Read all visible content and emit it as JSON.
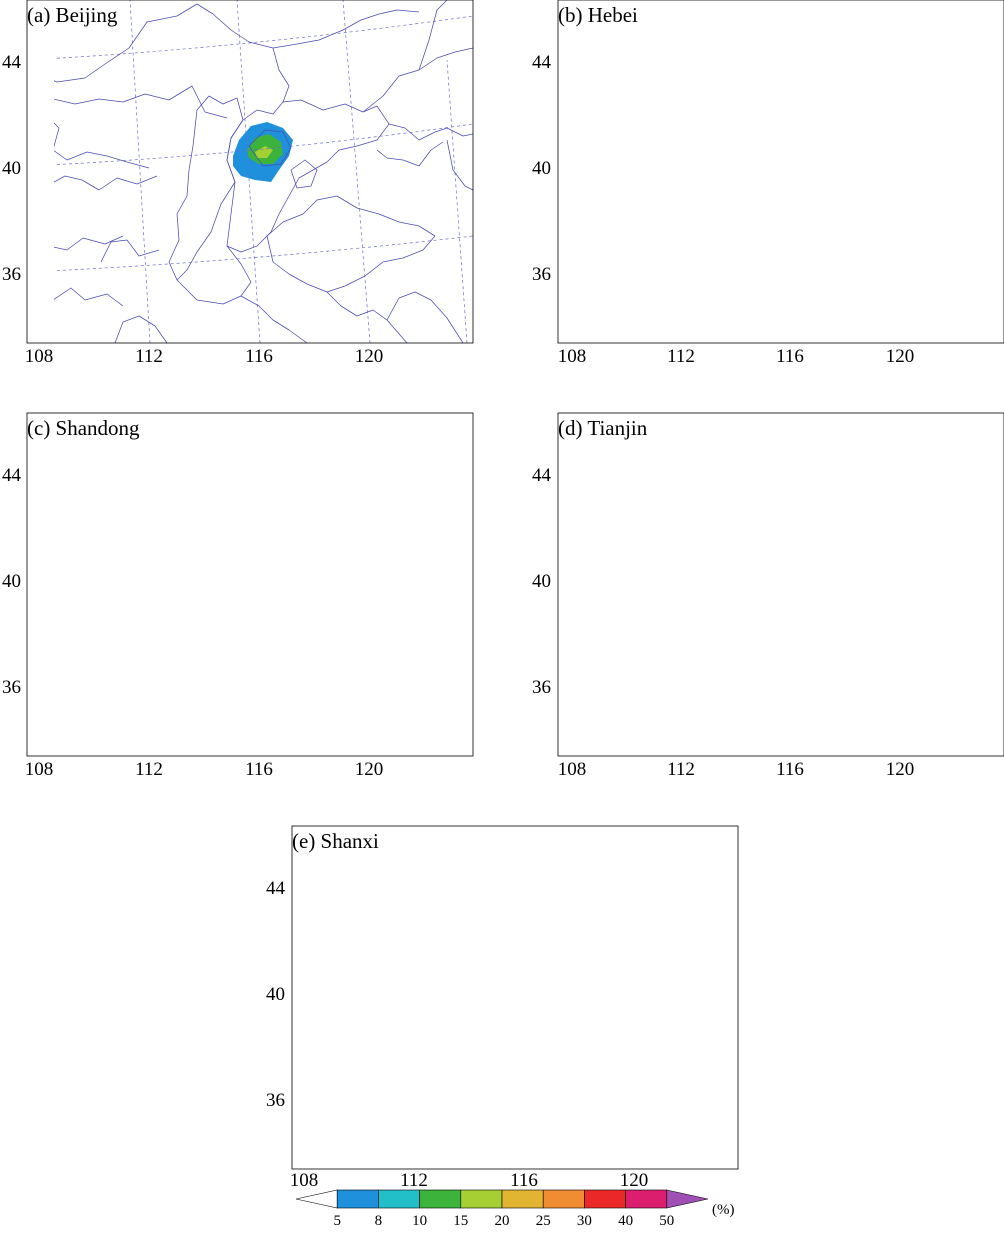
{
  "figure": {
    "panels": [
      {
        "id": "a",
        "title": "(a) Beijing"
      },
      {
        "id": "b",
        "title": "(b) Hebei"
      },
      {
        "id": "c",
        "title": "(c) Shandong"
      },
      {
        "id": "d",
        "title": "(d) Tianjin"
      },
      {
        "id": "e",
        "title": "(e) Shanxi"
      }
    ],
    "x_ticks": [
      "108",
      "112",
      "116",
      "120"
    ],
    "y_ticks": [
      "44",
      "40",
      "36"
    ],
    "legend": {
      "unit": "(%)",
      "labels": [
        "5",
        "8",
        "10",
        "15",
        "20",
        "25",
        "30",
        "40",
        "50"
      ],
      "colors": [
        "#ffffff",
        "#1e90dc",
        "#22bfc9",
        "#3cb43c",
        "#a5cf32",
        "#e1b432",
        "#f08c32",
        "#eb2828",
        "#dc1e6e",
        "#a050b4"
      ]
    }
  },
  "map_data": {
    "projection": "Lambert conformal (curved parallels)",
    "lon_gridlines": [
      108,
      112,
      116,
      120
    ],
    "lat_gridlines": [
      36,
      40,
      44
    ],
    "contour_levels_percent": [
      5,
      8,
      10,
      15,
      20,
      25,
      30,
      40,
      50
    ]
  }
}
